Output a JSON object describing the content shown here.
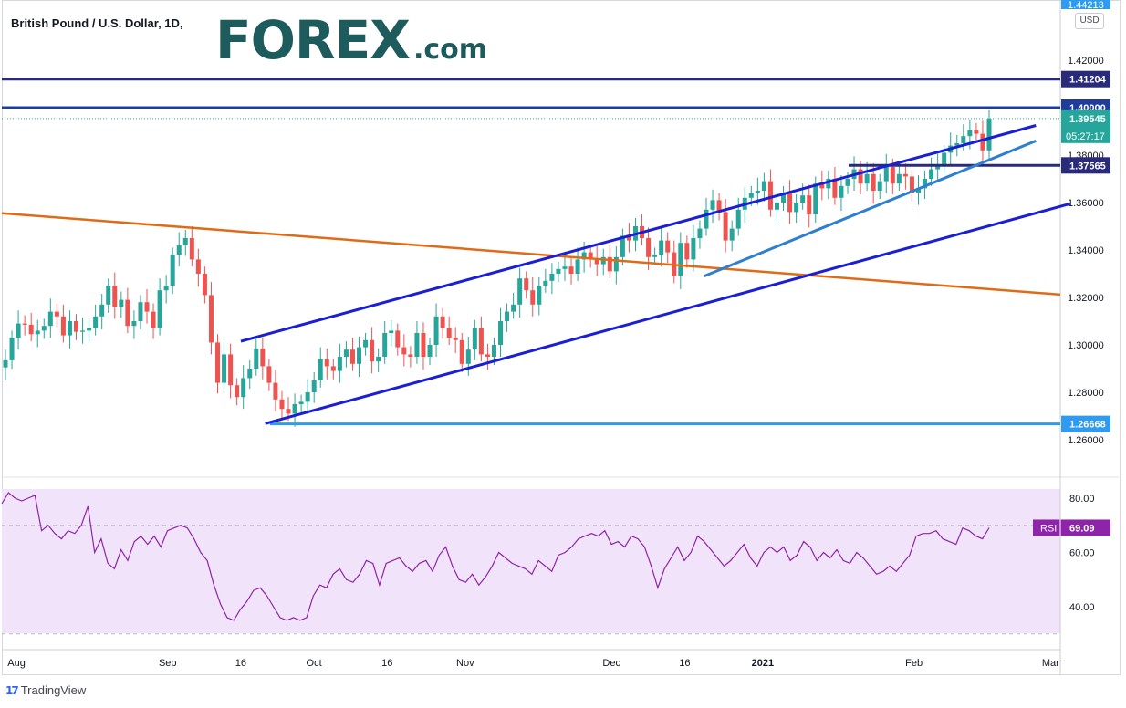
{
  "header": {
    "symbol_title": "British Pound / U.S. Dollar, 1D,",
    "logo_main": "FOREX",
    "logo_suffix": ".com",
    "currency": "USD",
    "top_partial_label": "1.44213"
  },
  "footer": {
    "brand": "TradingView",
    "brand_icon": "tradingview-logo-icon"
  },
  "colors": {
    "up": "#26a69a",
    "down": "#ef5350",
    "channel": "#1a1fd4",
    "support_line": "#2e7fcf",
    "trendline": "#e06b17",
    "resistance": "#2a2a7a",
    "level_1_40": "#1d3c9c",
    "support_1_2667": "#2e9bf0",
    "rsi_line": "#8e24aa",
    "rsi_band": "#f1e3fa",
    "price_tag": "#26a69a"
  },
  "chart_data": [
    {
      "type": "candlestick",
      "title": "British Pound / U.S. Dollar, 1D,",
      "ylim": [
        1.256,
        1.444
      ],
      "y_ticks": [
        "1.26000",
        "1.28000",
        "1.30000",
        "1.32000",
        "1.34000",
        "1.36000",
        "1.38000",
        "1.42000"
      ],
      "x_ticks": [
        "Aug",
        "Sep",
        "16",
        "Oct",
        "16",
        "Nov",
        "Dec",
        "16",
        "2021",
        "Feb",
        "Mar"
      ],
      "x_tick_dates": [
        "2020-08-01",
        "2020-09-01",
        "2020-09-16",
        "2020-10-01",
        "2020-10-16",
        "2020-11-01",
        "2020-12-01",
        "2020-12-16",
        "2021-01-01",
        "2021-02-01",
        "2021-03-01"
      ],
      "date_range": [
        "2020-07-29",
        "2021-03-03"
      ],
      "closes": [
        1.2935,
        1.303,
        1.309,
        1.3085,
        1.3045,
        1.306,
        1.308,
        1.314,
        1.312,
        1.304,
        1.31,
        1.3055,
        1.306,
        1.307,
        1.312,
        1.317,
        1.325,
        1.316,
        1.319,
        1.308,
        1.31,
        1.318,
        1.314,
        1.307,
        1.323,
        1.325,
        1.338,
        1.342,
        1.345,
        1.336,
        1.33,
        1.321,
        1.301,
        1.284,
        1.296,
        1.283,
        1.278,
        1.286,
        1.29,
        1.2985,
        1.291,
        1.284,
        1.277,
        1.273,
        1.271,
        1.275,
        1.276,
        1.28,
        1.285,
        1.294,
        1.291,
        1.289,
        1.295,
        1.298,
        1.292,
        1.299,
        1.302,
        1.293,
        1.295,
        1.305,
        1.306,
        1.299,
        1.296,
        1.295,
        1.305,
        1.295,
        1.3,
        1.312,
        1.307,
        1.303,
        1.302,
        1.292,
        1.298,
        1.307,
        1.296,
        1.295,
        1.3,
        1.31,
        1.314,
        1.317,
        1.328,
        1.323,
        1.317,
        1.325,
        1.327,
        1.33,
        1.332,
        1.333,
        1.33,
        1.336,
        1.339,
        1.336,
        1.334,
        1.337,
        1.331,
        1.337,
        1.346,
        1.344,
        1.35,
        1.345,
        1.337,
        1.338,
        1.344,
        1.339,
        1.329,
        1.343,
        1.336,
        1.345,
        1.349,
        1.357,
        1.361,
        1.356,
        1.344,
        1.349,
        1.357,
        1.362,
        1.364,
        1.365,
        1.369,
        1.357,
        1.36,
        1.364,
        1.356,
        1.36,
        1.363,
        1.355,
        1.368,
        1.366,
        1.37,
        1.362,
        1.367,
        1.37,
        1.374,
        1.368,
        1.372,
        1.365,
        1.369,
        1.375,
        1.368,
        1.372,
        1.371,
        1.364,
        1.366,
        1.37,
        1.374,
        1.376,
        1.381,
        1.384,
        1.385,
        1.388,
        1.3905,
        1.389,
        1.382,
        1.3954
      ],
      "horizontal_levels": [
        {
          "label": "1.41204",
          "value": 1.41204
        },
        {
          "label": "1.40000",
          "value": 1.4
        },
        {
          "label": "1.39545",
          "value": 1.39545,
          "sublabel": "05:27:17"
        },
        {
          "label": "1.37565",
          "value": 1.37565
        },
        {
          "label": "1.26668",
          "value": 1.26668
        }
      ]
    },
    {
      "type": "line",
      "name": "RSI",
      "last_value": "69.09",
      "ylim": [
        28,
        86
      ],
      "y_ticks": [
        "40.00",
        "60.00",
        "80.00"
      ],
      "band": [
        30,
        70
      ],
      "values": [
        78,
        82,
        80,
        79,
        80,
        81,
        68,
        70,
        67,
        65,
        68,
        67,
        70,
        77,
        60,
        65,
        56,
        54,
        61,
        57,
        64,
        66,
        63,
        66,
        62,
        68,
        69,
        70,
        69,
        65,
        60,
        57,
        48,
        41,
        36,
        35,
        39,
        42,
        46,
        47,
        44,
        40,
        36,
        35,
        36,
        35,
        36,
        44,
        48,
        47,
        52,
        54,
        50,
        49,
        52,
        57,
        56,
        48,
        56,
        57,
        58,
        55,
        53,
        56,
        57,
        53,
        59,
        62,
        55,
        50,
        49,
        52,
        48,
        51,
        55,
        60,
        58,
        56,
        55,
        54,
        52,
        57,
        55,
        53,
        59,
        60,
        62,
        65,
        66,
        67,
        66,
        68,
        63,
        64,
        62,
        66,
        65,
        62,
        55,
        47,
        54,
        58,
        62,
        57,
        60,
        66,
        64,
        61,
        58,
        55,
        57,
        60,
        63,
        58,
        55,
        60,
        62,
        60,
        62,
        57,
        59,
        64,
        62,
        57,
        60,
        58,
        61,
        57,
        56,
        60,
        58,
        55,
        52,
        53,
        55,
        53,
        56,
        59,
        66,
        67,
        67,
        68,
        65,
        64,
        63,
        69,
        68,
        66,
        65,
        69.09
      ]
    }
  ]
}
